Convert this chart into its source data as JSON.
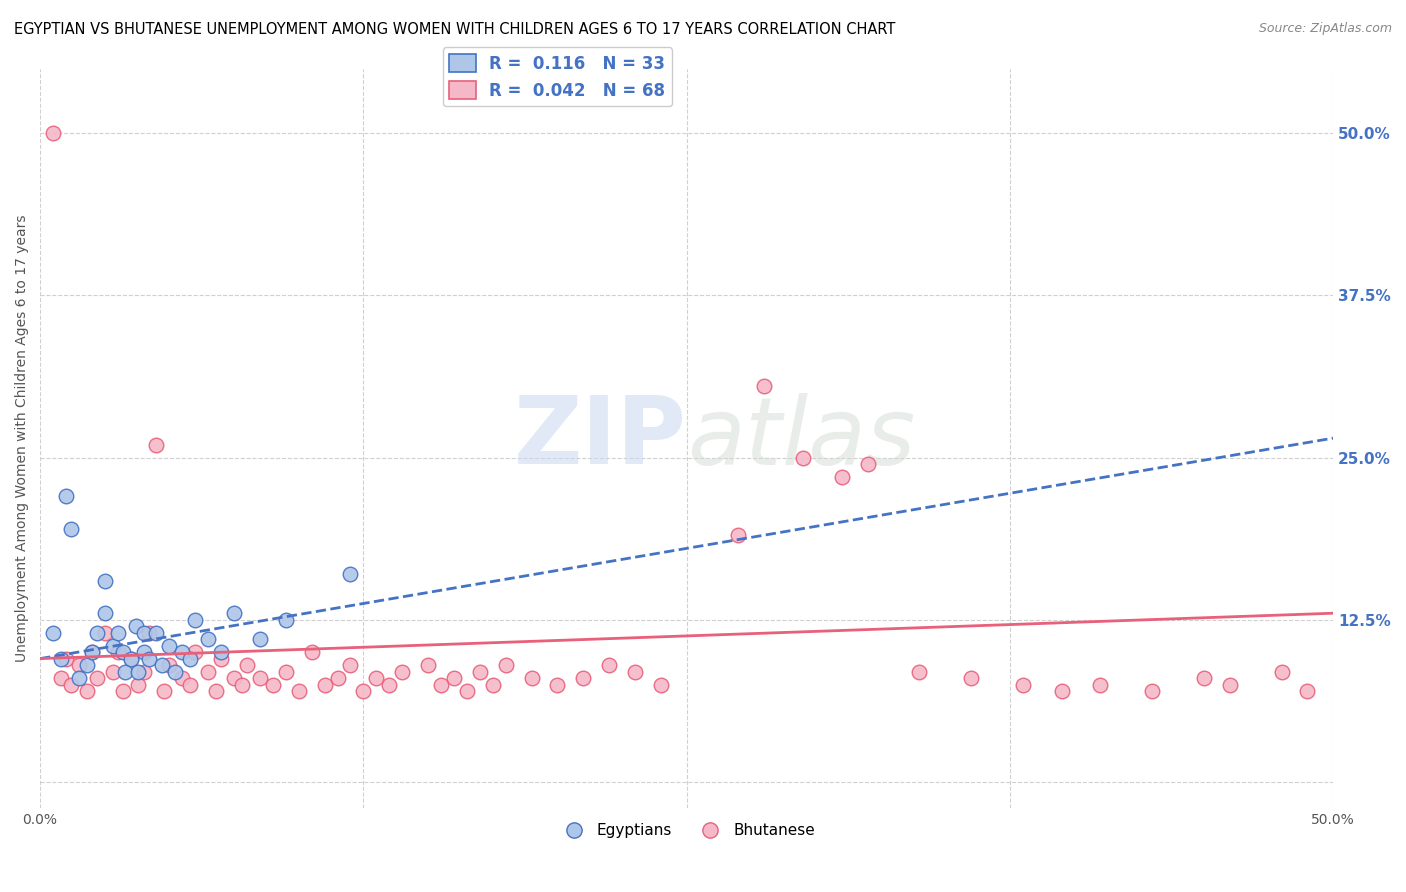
{
  "title": "EGYPTIAN VS BHUTANESE UNEMPLOYMENT AMONG WOMEN WITH CHILDREN AGES 6 TO 17 YEARS CORRELATION CHART",
  "source": "Source: ZipAtlas.com",
  "ylabel": "Unemployment Among Women with Children Ages 6 to 17 years",
  "xlim": [
    0.0,
    0.5
  ],
  "ylim": [
    -0.02,
    0.55
  ],
  "xticks": [
    0.0,
    0.125,
    0.25,
    0.375,
    0.5
  ],
  "xticklabels": [
    "0.0%",
    "",
    "",
    "",
    "50.0%"
  ],
  "ytick_right_vals": [
    0.0,
    0.125,
    0.25,
    0.375,
    0.5
  ],
  "ytick_right_labels": [
    "",
    "12.5%",
    "25.0%",
    "37.5%",
    "50.0%"
  ],
  "legend_R_blue": "0.116",
  "legend_N_blue": "33",
  "legend_R_pink": "0.042",
  "legend_N_pink": "68",
  "blue_color": "#aec6e8",
  "pink_color": "#f5b8c8",
  "blue_line_color": "#4472c4",
  "pink_line_color": "#e8607a",
  "grid_color": "#d0d0d0",
  "watermark_zip": "ZIP",
  "watermark_atlas": "atlas",
  "blue_scatter_x": [
    0.005,
    0.008,
    0.01,
    0.012,
    0.015,
    0.018,
    0.02,
    0.022,
    0.025,
    0.025,
    0.028,
    0.03,
    0.032,
    0.033,
    0.035,
    0.037,
    0.038,
    0.04,
    0.04,
    0.042,
    0.045,
    0.047,
    0.05,
    0.052,
    0.055,
    0.058,
    0.06,
    0.065,
    0.07,
    0.075,
    0.085,
    0.095,
    0.12
  ],
  "blue_scatter_y": [
    0.115,
    0.095,
    0.22,
    0.195,
    0.08,
    0.09,
    0.1,
    0.115,
    0.155,
    0.13,
    0.105,
    0.115,
    0.1,
    0.085,
    0.095,
    0.12,
    0.085,
    0.115,
    0.1,
    0.095,
    0.115,
    0.09,
    0.105,
    0.085,
    0.1,
    0.095,
    0.125,
    0.11,
    0.1,
    0.13,
    0.11,
    0.125,
    0.16
  ],
  "pink_scatter_x": [
    0.005,
    0.008,
    0.01,
    0.012,
    0.015,
    0.018,
    0.02,
    0.022,
    0.025,
    0.028,
    0.03,
    0.032,
    0.035,
    0.038,
    0.04,
    0.042,
    0.045,
    0.048,
    0.05,
    0.055,
    0.058,
    0.06,
    0.065,
    0.068,
    0.07,
    0.075,
    0.078,
    0.08,
    0.085,
    0.09,
    0.095,
    0.1,
    0.105,
    0.11,
    0.115,
    0.12,
    0.125,
    0.13,
    0.135,
    0.14,
    0.15,
    0.155,
    0.16,
    0.165,
    0.17,
    0.175,
    0.18,
    0.19,
    0.2,
    0.21,
    0.22,
    0.23,
    0.24,
    0.27,
    0.28,
    0.295,
    0.31,
    0.32,
    0.34,
    0.36,
    0.38,
    0.395,
    0.41,
    0.43,
    0.45,
    0.46,
    0.48,
    0.49
  ],
  "pink_scatter_y": [
    0.5,
    0.08,
    0.095,
    0.075,
    0.09,
    0.07,
    0.1,
    0.08,
    0.115,
    0.085,
    0.1,
    0.07,
    0.095,
    0.075,
    0.085,
    0.115,
    0.26,
    0.07,
    0.09,
    0.08,
    0.075,
    0.1,
    0.085,
    0.07,
    0.095,
    0.08,
    0.075,
    0.09,
    0.08,
    0.075,
    0.085,
    0.07,
    0.1,
    0.075,
    0.08,
    0.09,
    0.07,
    0.08,
    0.075,
    0.085,
    0.09,
    0.075,
    0.08,
    0.07,
    0.085,
    0.075,
    0.09,
    0.08,
    0.075,
    0.08,
    0.09,
    0.085,
    0.075,
    0.19,
    0.305,
    0.25,
    0.235,
    0.245,
    0.085,
    0.08,
    0.075,
    0.07,
    0.075,
    0.07,
    0.08,
    0.075,
    0.085,
    0.07
  ],
  "blue_trend_x": [
    0.0,
    0.5
  ],
  "blue_trend_y": [
    0.095,
    0.265
  ],
  "pink_trend_x": [
    0.0,
    0.5
  ],
  "pink_trend_y": [
    0.095,
    0.13
  ]
}
